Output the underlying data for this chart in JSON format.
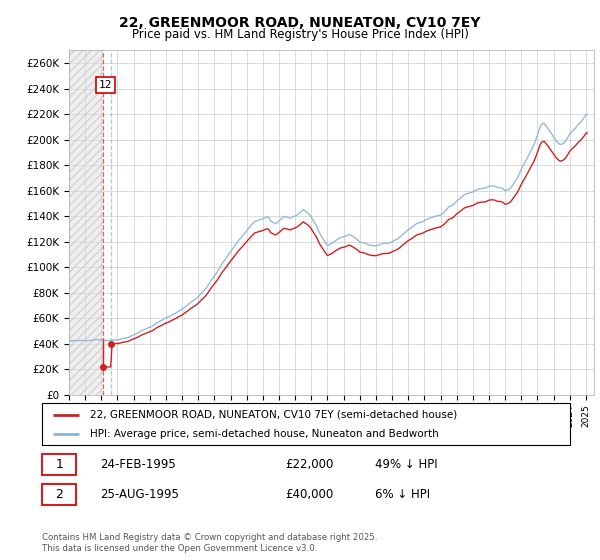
{
  "title": "22, GREENMOOR ROAD, NUNEATON, CV10 7EY",
  "subtitle": "Price paid vs. HM Land Registry's House Price Index (HPI)",
  "ylim": [
    0,
    270000
  ],
  "yticks": [
    0,
    20000,
    40000,
    60000,
    80000,
    100000,
    120000,
    140000,
    160000,
    180000,
    200000,
    220000,
    240000,
    260000
  ],
  "ytick_labels": [
    "£0",
    "£20K",
    "£40K",
    "£60K",
    "£80K",
    "£100K",
    "£120K",
    "£140K",
    "£160K",
    "£180K",
    "£200K",
    "£220K",
    "£240K",
    "£260K"
  ],
  "hpi_color": "#88b4d8",
  "price_color": "#cc2222",
  "bg_color": "#ffffff",
  "grid_color": "#cccccc",
  "sale1_year": 1995.12,
  "sale1_price": 22000,
  "sale2_year": 1995.62,
  "sale2_price": 40000,
  "legend_line1": "22, GREENMOOR ROAD, NUNEATON, CV10 7EY (semi-detached house)",
  "legend_line2": "HPI: Average price, semi-detached house, Nuneaton and Bedworth",
  "table_row1": [
    "1",
    "24-FEB-1995",
    "£22,000",
    "49% ↓ HPI"
  ],
  "table_row2": [
    "2",
    "25-AUG-1995",
    "£40,000",
    "6% ↓ HPI"
  ],
  "footer": "Contains HM Land Registry data © Crown copyright and database right 2025.\nThis data is licensed under the Open Government Licence v3.0.",
  "xmin": 1993.0,
  "xmax": 2025.5
}
